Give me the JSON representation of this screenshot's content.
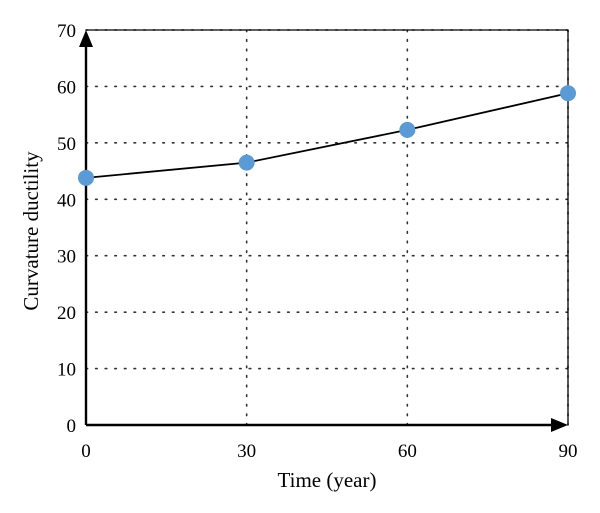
{
  "chart_data": {
    "type": "line",
    "title": "",
    "xlabel": "Time (year)",
    "ylabel": "Curvature ductility",
    "x": [
      0,
      30,
      60,
      90
    ],
    "series": [
      {
        "values": [
          43.8,
          46.5,
          52.3,
          58.8
        ]
      }
    ],
    "xlim": [
      0,
      90
    ],
    "ylim": [
      0,
      70
    ],
    "xticks": [
      "0",
      "30",
      "60",
      "90"
    ],
    "yticks": [
      "0",
      "10",
      "20",
      "30",
      "40",
      "50",
      "60",
      "70"
    ],
    "grid": "dotted",
    "line_color": "#000000",
    "marker_color": "#5b9bd5"
  }
}
